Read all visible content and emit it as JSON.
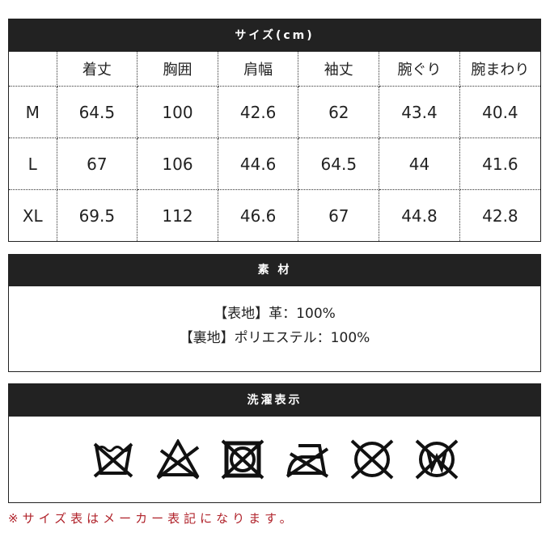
{
  "size": {
    "title": "サイズ(cm)",
    "columns": [
      "",
      "着丈",
      "胸囲",
      "肩幅",
      "袖丈",
      "腕ぐり",
      "腕まわり"
    ],
    "rows": [
      [
        "M",
        "64.5",
        "100",
        "42.6",
        "62",
        "43.4",
        "40.4"
      ],
      [
        "L",
        "67",
        "106",
        "44.6",
        "64.5",
        "44",
        "41.6"
      ],
      [
        "XL",
        "69.5",
        "112",
        "46.6",
        "67",
        "44.8",
        "42.8"
      ]
    ]
  },
  "material": {
    "title": "素 材",
    "lines": [
      "【表地】革：100%",
      "【裏地】ポリエステル：100%"
    ]
  },
  "care": {
    "title": "洗濯表示",
    "icons": [
      "no-wash-icon",
      "no-bleach-icon",
      "no-tumble-dry-icon",
      "no-iron-icon",
      "no-dry-clean-icon",
      "no-wet-clean-icon"
    ]
  },
  "note": "※サイズ表はメーカー表記になります。"
}
